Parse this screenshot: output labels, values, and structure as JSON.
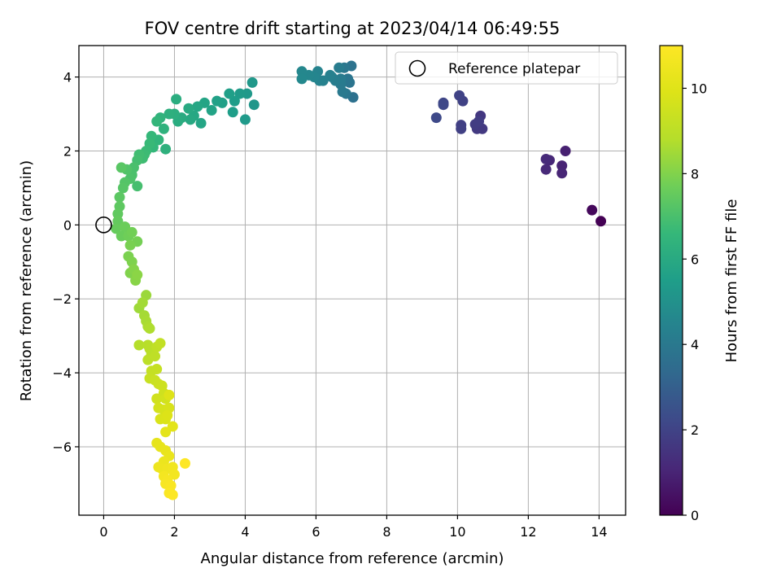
{
  "chart_data": {
    "type": "scatter",
    "title": "FOV centre drift starting at 2023/04/14 06:49:55",
    "xlabel": "Angular distance from reference (arcmin)",
    "ylabel": "Rotation from reference (arcmin)",
    "xlim": [
      -0.7,
      14.75
    ],
    "ylim": [
      -7.85,
      4.85
    ],
    "xticks": [
      0,
      2,
      4,
      6,
      8,
      10,
      12,
      14
    ],
    "yticks": [
      -6,
      -4,
      -2,
      0,
      2,
      4
    ],
    "grid": true,
    "legend": {
      "label": "Reference platepar",
      "location": "upper right"
    },
    "reference_point": {
      "x": 0,
      "y": 0,
      "marker": "hollow circle"
    },
    "colorbar": {
      "label": "Hours from first FF file",
      "range": [
        0,
        11
      ],
      "ticks": [
        0,
        2,
        4,
        6,
        8,
        10
      ],
      "colormap": "viridis"
    },
    "series": [
      {
        "points": [
          [
            14.05,
            0.1,
            0.0
          ],
          [
            13.8,
            0.4,
            0.2
          ],
          [
            13.05,
            2.0,
            0.9
          ],
          [
            12.95,
            1.6,
            1.0
          ],
          [
            12.95,
            1.4,
            1.05
          ],
          [
            12.6,
            1.75,
            1.1
          ],
          [
            12.5,
            1.5,
            1.15
          ],
          [
            12.5,
            1.78,
            1.2
          ],
          [
            10.65,
            2.95,
            1.6
          ],
          [
            10.7,
            2.6,
            1.65
          ],
          [
            10.55,
            2.6,
            1.7
          ],
          [
            10.5,
            2.72,
            1.75
          ],
          [
            10.6,
            2.8,
            1.8
          ],
          [
            10.1,
            2.7,
            1.85
          ],
          [
            10.1,
            2.6,
            1.9
          ],
          [
            10.15,
            3.35,
            1.95
          ],
          [
            10.05,
            3.5,
            2.0
          ],
          [
            9.6,
            3.3,
            2.1
          ],
          [
            9.6,
            3.25,
            2.15
          ],
          [
            9.4,
            2.9,
            2.2
          ],
          [
            7.05,
            3.45,
            3.7
          ],
          [
            7.0,
            4.3,
            3.75
          ],
          [
            6.95,
            3.85,
            3.8
          ],
          [
            6.9,
            3.95,
            3.85
          ],
          [
            6.85,
            3.55,
            3.9
          ],
          [
            6.8,
            4.25,
            3.95
          ],
          [
            6.75,
            3.6,
            4.0
          ],
          [
            6.7,
            3.8,
            4.05
          ],
          [
            6.7,
            3.95,
            4.1
          ],
          [
            6.65,
            4.25,
            4.15
          ],
          [
            6.55,
            3.9,
            4.2
          ],
          [
            6.45,
            4.0,
            4.25
          ],
          [
            6.4,
            4.05,
            4.3
          ],
          [
            6.2,
            3.9,
            4.35
          ],
          [
            6.1,
            3.9,
            4.4
          ],
          [
            6.05,
            4.15,
            4.45
          ],
          [
            5.95,
            4.0,
            4.5
          ],
          [
            5.8,
            4.05,
            4.55
          ],
          [
            5.6,
            4.15,
            4.6
          ],
          [
            5.6,
            3.95,
            4.65
          ],
          [
            4.25,
            3.25,
            5.2
          ],
          [
            4.2,
            3.85,
            5.25
          ],
          [
            4.05,
            3.55,
            5.3
          ],
          [
            4.0,
            2.85,
            5.35
          ],
          [
            3.85,
            3.55,
            5.4
          ],
          [
            3.7,
            3.35,
            5.45
          ],
          [
            3.65,
            3.05,
            5.5
          ],
          [
            3.55,
            3.55,
            5.55
          ],
          [
            3.35,
            3.3,
            5.6
          ],
          [
            3.2,
            3.35,
            5.65
          ],
          [
            3.05,
            3.1,
            5.7
          ],
          [
            2.85,
            3.3,
            5.75
          ],
          [
            2.75,
            2.75,
            5.8
          ],
          [
            2.65,
            3.2,
            5.85
          ],
          [
            2.55,
            2.95,
            5.9
          ],
          [
            2.45,
            2.85,
            5.95
          ],
          [
            2.4,
            3.15,
            6.0
          ],
          [
            2.2,
            2.9,
            6.05
          ],
          [
            2.1,
            2.8,
            6.1
          ],
          [
            2.05,
            3.4,
            6.15
          ],
          [
            2.0,
            3.0,
            6.2
          ],
          [
            1.85,
            3.0,
            6.25
          ],
          [
            1.75,
            2.05,
            6.3
          ],
          [
            1.7,
            2.6,
            6.35
          ],
          [
            1.6,
            2.9,
            6.4
          ],
          [
            1.55,
            2.3,
            6.45
          ],
          [
            1.5,
            2.8,
            6.5
          ],
          [
            1.4,
            2.1,
            6.55
          ],
          [
            1.35,
            2.4,
            6.6
          ],
          [
            1.3,
            2.2,
            6.65
          ],
          [
            1.2,
            2.0,
            6.7
          ],
          [
            1.15,
            1.9,
            6.75
          ],
          [
            1.1,
            1.8,
            6.8
          ],
          [
            1.0,
            1.9,
            6.85
          ],
          [
            0.95,
            1.75,
            6.9
          ],
          [
            0.95,
            1.05,
            6.95
          ],
          [
            0.85,
            1.55,
            7.0
          ],
          [
            0.8,
            1.35,
            7.05
          ],
          [
            0.75,
            1.25,
            7.1
          ],
          [
            0.65,
            1.5,
            7.15
          ],
          [
            0.6,
            1.15,
            7.2
          ],
          [
            0.55,
            1.0,
            7.25
          ],
          [
            0.5,
            1.55,
            7.3
          ],
          [
            0.45,
            0.75,
            7.35
          ],
          [
            0.45,
            0.5,
            7.4
          ],
          [
            0.4,
            0.3,
            7.45
          ],
          [
            0.4,
            0.1,
            7.5
          ],
          [
            0.35,
            -0.1,
            7.55
          ],
          [
            0.5,
            -0.3,
            7.6
          ],
          [
            0.6,
            -0.05,
            7.65
          ],
          [
            0.7,
            -0.3,
            7.7
          ],
          [
            0.8,
            -0.2,
            7.75
          ],
          [
            0.95,
            -0.45,
            7.8
          ],
          [
            0.75,
            -0.55,
            7.85
          ],
          [
            0.7,
            -0.85,
            7.9
          ],
          [
            0.8,
            -1.0,
            7.95
          ],
          [
            0.75,
            -1.3,
            8.0
          ],
          [
            0.85,
            -1.2,
            8.05
          ],
          [
            0.9,
            -1.5,
            8.1
          ],
          [
            0.95,
            -1.35,
            8.15
          ],
          [
            1.2,
            -1.9,
            8.4
          ],
          [
            1.0,
            -2.25,
            8.45
          ],
          [
            1.1,
            -2.1,
            8.5
          ],
          [
            1.15,
            -2.45,
            8.55
          ],
          [
            1.2,
            -2.6,
            8.6
          ],
          [
            1.25,
            -2.75,
            8.65
          ],
          [
            1.3,
            -2.8,
            8.7
          ],
          [
            1.0,
            -3.25,
            8.8
          ],
          [
            1.25,
            -3.25,
            8.85
          ],
          [
            1.3,
            -3.35,
            8.9
          ],
          [
            1.35,
            -3.5,
            8.95
          ],
          [
            1.25,
            -3.65,
            9.0
          ],
          [
            1.45,
            -3.55,
            9.05
          ],
          [
            1.5,
            -3.3,
            9.1
          ],
          [
            1.6,
            -3.2,
            9.15
          ],
          [
            1.35,
            -3.95,
            9.2
          ],
          [
            1.5,
            -3.9,
            9.25
          ],
          [
            1.3,
            -4.15,
            9.3
          ],
          [
            1.45,
            -4.2,
            9.35
          ],
          [
            1.55,
            -4.3,
            9.4
          ],
          [
            1.65,
            -4.35,
            9.45
          ],
          [
            1.7,
            -4.55,
            9.5
          ],
          [
            1.5,
            -4.7,
            9.55
          ],
          [
            1.75,
            -4.7,
            9.6
          ],
          [
            1.55,
            -4.95,
            9.65
          ],
          [
            1.7,
            -5.0,
            9.7
          ],
          [
            1.85,
            -4.95,
            9.75
          ],
          [
            1.6,
            -5.25,
            9.8
          ],
          [
            1.75,
            -5.25,
            9.85
          ],
          [
            1.8,
            -5.15,
            9.9
          ],
          [
            1.85,
            -4.6,
            9.95
          ],
          [
            1.95,
            -5.45,
            10.1
          ],
          [
            1.75,
            -5.6,
            10.15
          ],
          [
            1.5,
            -5.9,
            10.2
          ],
          [
            1.6,
            -6.0,
            10.25
          ],
          [
            1.75,
            -6.1,
            10.3
          ],
          [
            1.85,
            -6.25,
            10.35
          ],
          [
            1.7,
            -6.4,
            10.4
          ],
          [
            1.55,
            -6.55,
            10.45
          ],
          [
            1.65,
            -6.6,
            10.5
          ],
          [
            1.8,
            -6.6,
            10.55
          ],
          [
            1.95,
            -6.55,
            10.6
          ],
          [
            2.0,
            -6.75,
            10.65
          ],
          [
            1.7,
            -6.8,
            10.7
          ],
          [
            1.8,
            -6.9,
            10.75
          ],
          [
            1.75,
            -7.0,
            10.8
          ],
          [
            1.9,
            -7.05,
            10.85
          ],
          [
            1.85,
            -7.25,
            10.9
          ],
          [
            1.95,
            -7.3,
            10.95
          ],
          [
            2.3,
            -6.45,
            11.0
          ]
        ]
      }
    ]
  }
}
